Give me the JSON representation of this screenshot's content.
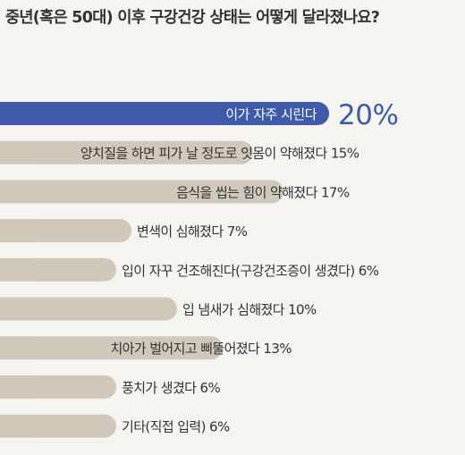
{
  "title": "중년(혹은 50대) 이후 구강건강 상태는 어떻게 달라졌나요?",
  "colors": {
    "background": "#f5f4f1",
    "highlight_bar": "#3e5aa8",
    "bar": "#cfc8bb",
    "highlight_text": "#3e5aa8",
    "text": "#333333"
  },
  "chart_data": {
    "type": "bar",
    "orientation": "horizontal",
    "title": "중년(혹은 50대) 이후 구강건강 상태는 어떻게 달라졌나요?",
    "xlabel": "",
    "ylabel": "",
    "unit": "%",
    "grid": false,
    "legend": "none",
    "highlight_index": 0,
    "categories": [
      "이가 자주 시린다",
      "양치질을 하면 피가 날 정도로 잇몸이 약해졌다",
      "음식을 씹는 힘이 약해졌다",
      "변색이 심해졌다",
      "입이 자꾸 건조해진다(구강건조증이 생겼다)",
      "입 냄새가 심해졌다",
      "치아가 벌어지고 삐뚤어졌다",
      "풍치가 생겼다",
      "기타(직접 입력)"
    ],
    "values": [
      20,
      15,
      17,
      7,
      6,
      10,
      13,
      6,
      6
    ],
    "value_labels": [
      "20%",
      "15%",
      "17%",
      "7%",
      "6%",
      "10%",
      "13%",
      "6%",
      "6%"
    ]
  }
}
